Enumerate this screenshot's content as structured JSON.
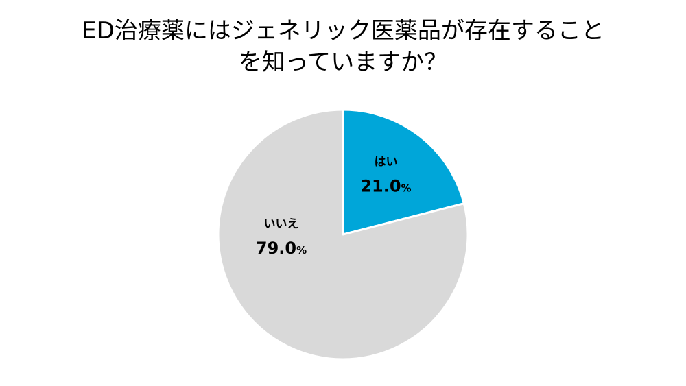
{
  "title_lines": [
    "ED治療薬にはジェネリック医薬品が存在すること",
    "を知っていますか？"
  ],
  "colors": {
    "yes": "#00a6d9",
    "no": "#d9d9d9",
    "edge": "#ffffff",
    "yes_text": "#ffffff",
    "no_text": "#000000"
  },
  "chart_data": {
    "type": "pie",
    "title": "ED治療薬にはジェネリック医薬品が存在することを知っていますか？",
    "slices": [
      {
        "label": "はい",
        "value": 21.0,
        "display": "21.0",
        "unit": "%"
      },
      {
        "label": "いいえ",
        "value": 79.0,
        "display": "79.0",
        "unit": "%"
      }
    ],
    "start": "12 o'clock",
    "direction": "clockwise"
  }
}
